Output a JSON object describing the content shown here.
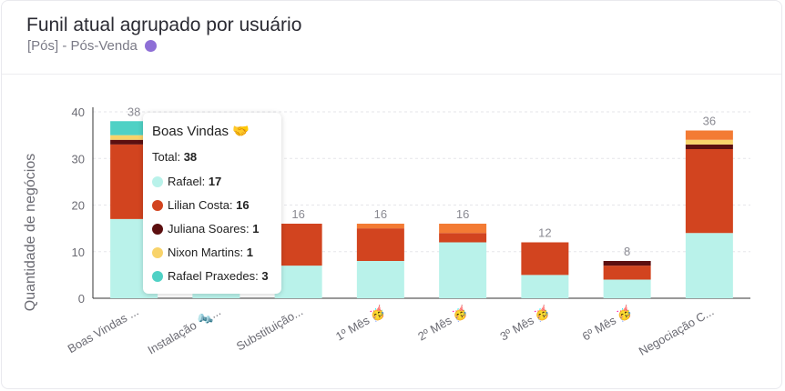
{
  "header": {
    "title": "Funil atual agrupado por usuário",
    "subtitle": "[Pós] - Pós-Venda",
    "dot_color": "#8e6fd6"
  },
  "tooltip": {
    "title": "Boas Vindas 🤝",
    "total_label": "Total:",
    "total_value": "38",
    "rows": [
      {
        "label": "Rafael:",
        "value": "17",
        "color": "#b9f2ea"
      },
      {
        "label": "Lilian Costa:",
        "value": "16",
        "color": "#d2441f"
      },
      {
        "label": "Juliana Soares:",
        "value": "1",
        "color": "#5c0f10"
      },
      {
        "label": "Nixon Martins:",
        "value": "1",
        "color": "#f8d36a"
      },
      {
        "label": "Rafael Praxedes:",
        "value": "3",
        "color": "#4fd1c5"
      }
    ]
  },
  "chart_data": {
    "type": "bar",
    "stacked": true,
    "ylabel": "Quantidade de negócios",
    "ylim": [
      0,
      40
    ],
    "yticks": [
      0,
      10,
      20,
      30,
      40
    ],
    "grid": true,
    "categories": [
      "Boas Vindas ...",
      "Instalação 🔩...",
      "Substituição...",
      "1º Mês 🥳",
      "2º Mês 🥳",
      "3º Mês 🥳",
      "6º Mês 🥳",
      "Negociação C..."
    ],
    "totals": [
      38,
      null,
      16,
      16,
      16,
      12,
      8,
      36
    ],
    "series": [
      {
        "name": "Rafael",
        "color": "#b9f2ea",
        "values": [
          17,
          1,
          7,
          8,
          12,
          5,
          4,
          14
        ]
      },
      {
        "name": "Lilian Costa",
        "color": "#d2441f",
        "values": [
          16,
          0,
          9,
          7,
          2,
          7,
          3,
          18
        ]
      },
      {
        "name": "Juliana Soares",
        "color": "#5c0f10",
        "values": [
          1,
          0,
          0,
          0,
          0,
          0,
          1,
          1
        ]
      },
      {
        "name": "Nixon Martins",
        "color": "#f8d36a",
        "values": [
          1,
          0,
          0,
          0,
          0,
          0,
          0,
          1
        ]
      },
      {
        "name": "Rafael Praxedes",
        "color": "#4fd1c5",
        "values": [
          3,
          0,
          0,
          0,
          0,
          0,
          0,
          0
        ]
      },
      {
        "name": "",
        "color": "#f37b34",
        "values": [
          0,
          0,
          0,
          1,
          2,
          0,
          0,
          2
        ]
      }
    ]
  }
}
